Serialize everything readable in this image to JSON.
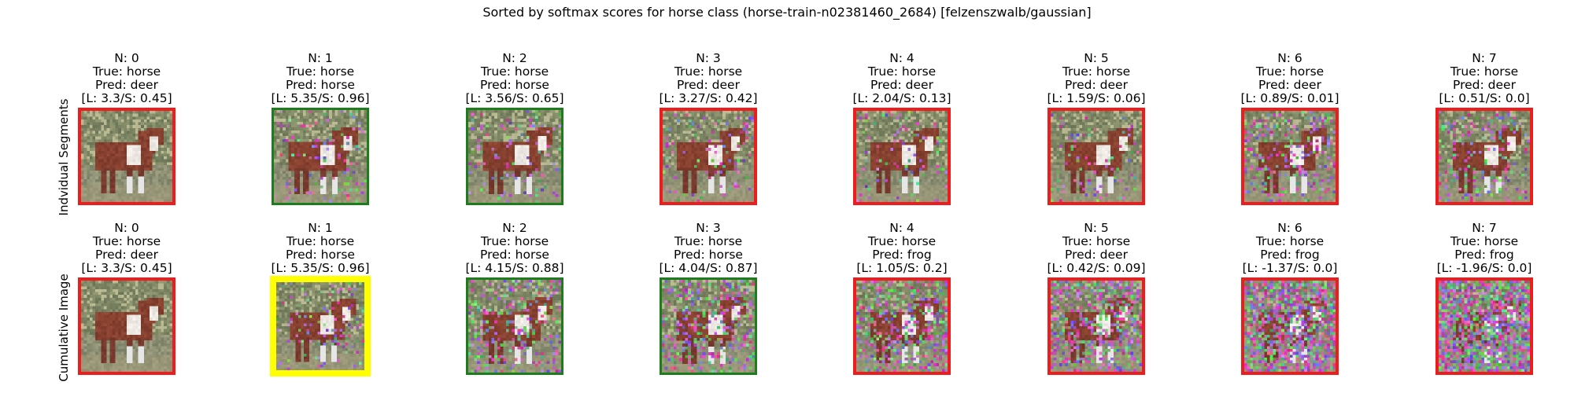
{
  "figure": {
    "suptitle": "Sorted by softmax scores for horse class (horse-train-n02381460_2684) [felzenszwalb/gaussian]"
  },
  "colors": {
    "red": "#ee1c1c",
    "green": "#1d7d1d",
    "yellow": "#ffff00"
  },
  "chart_data": {
    "type": "image-grid",
    "title": "Sorted by softmax scores for horse class (horse-train-n02381460_2684) [felzenszwalb/gaussian]",
    "rows": [
      {
        "label": "Indvidual Segments",
        "panels": [
          {
            "n": "N: 0",
            "true": "True: horse",
            "pred": "Pred: deer",
            "ls": "[L: 3.3/S: 0.45]",
            "border": "red",
            "noise": 0.0
          },
          {
            "n": "N: 1",
            "true": "True: horse",
            "pred": "Pred: horse",
            "ls": "[L: 5.35/S: 0.96]",
            "border": "green",
            "noise": 0.1
          },
          {
            "n": "N: 2",
            "true": "True: horse",
            "pred": "Pred: horse",
            "ls": "[L: 3.56/S: 0.65]",
            "border": "green",
            "noise": 0.1
          },
          {
            "n": "N: 3",
            "true": "True: horse",
            "pred": "Pred: deer",
            "ls": "[L: 3.27/S: 0.42]",
            "border": "red",
            "noise": 0.08
          },
          {
            "n": "N: 4",
            "true": "True: horse",
            "pred": "Pred: deer",
            "ls": "[L: 2.04/S: 0.13]",
            "border": "red",
            "noise": 0.08
          },
          {
            "n": "N: 5",
            "true": "True: horse",
            "pred": "Pred: deer",
            "ls": "[L: 1.59/S: 0.06]",
            "border": "red",
            "noise": 0.08
          },
          {
            "n": "N: 6",
            "true": "True: horse",
            "pred": "Pred: deer",
            "ls": "[L: 0.89/S: 0.01]",
            "border": "red",
            "noise": 0.2
          },
          {
            "n": "N: 7",
            "true": "True: horse",
            "pred": "Pred: deer",
            "ls": "[L: 0.51/S: 0.0]",
            "border": "red",
            "noise": 0.15
          }
        ]
      },
      {
        "label": "Cumulative Image",
        "panels": [
          {
            "n": "N: 0",
            "true": "True: horse",
            "pred": "Pred: deer",
            "ls": "[L: 3.3/S: 0.45]",
            "border": "red",
            "noise": 0.0
          },
          {
            "n": "N: 1",
            "true": "True: horse",
            "pred": "Pred: horse",
            "ls": "[L: 5.35/S: 0.96]",
            "border": "yellow",
            "noise": 0.1
          },
          {
            "n": "N: 2",
            "true": "True: horse",
            "pred": "Pred: horse",
            "ls": "[L: 4.15/S: 0.88]",
            "border": "green",
            "noise": 0.2
          },
          {
            "n": "N: 3",
            "true": "True: horse",
            "pred": "Pred: horse",
            "ls": "[L: 4.04/S: 0.87]",
            "border": "green",
            "noise": 0.28
          },
          {
            "n": "N: 4",
            "true": "True: horse",
            "pred": "Pred: frog",
            "ls": "[L: 1.05/S: 0.2]",
            "border": "red",
            "noise": 0.35
          },
          {
            "n": "N: 5",
            "true": "True: horse",
            "pred": "Pred: deer",
            "ls": "[L: 0.42/S: 0.09]",
            "border": "red",
            "noise": 0.42
          },
          {
            "n": "N: 6",
            "true": "True: horse",
            "pred": "Pred: frog",
            "ls": "[L: -1.37/S: 0.0]",
            "border": "red",
            "noise": 0.6
          },
          {
            "n": "N: 7",
            "true": "True: horse",
            "pred": "Pred: frog",
            "ls": "[L: -1.96/S: 0.0]",
            "border": "red",
            "noise": 0.75
          }
        ]
      }
    ]
  }
}
